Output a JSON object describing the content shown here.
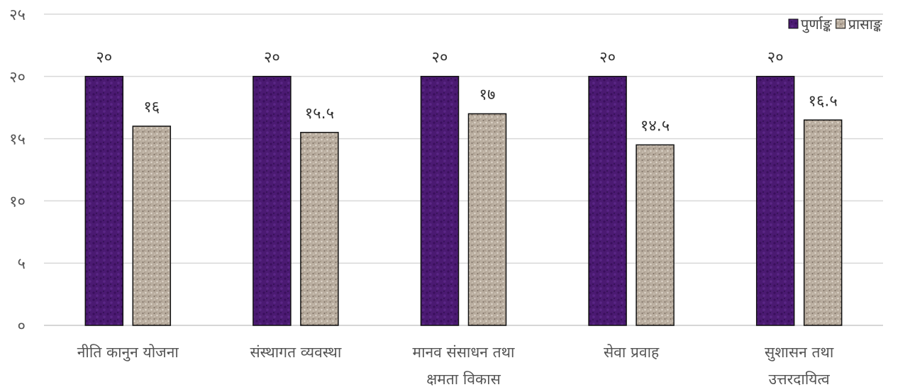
{
  "chart_data": {
    "type": "bar",
    "categories": [
      [
        "नीति कानुन योजना"
      ],
      [
        "संस्थागत व्यवस्था"
      ],
      [
        "मानव संसाधन तथा",
        "क्षमता विकास"
      ],
      [
        "सेवा प्रवाह"
      ],
      [
        "सुशासन तथा",
        "उत्तरदायित्व"
      ]
    ],
    "series": [
      {
        "name": "पुर्णाङ्क",
        "color": "#4b1a72",
        "values": [
          20,
          20,
          20,
          20,
          20
        ],
        "labels": [
          "२०",
          "२०",
          "२०",
          "२०",
          "२०"
        ]
      },
      {
        "name": "प्रासाङ्क",
        "color": "#b9ad9f",
        "values": [
          16,
          15.5,
          17,
          14.5,
          16.5
        ],
        "labels": [
          "१६",
          "१५.५",
          "१७",
          "१४.५",
          "१६.५"
        ]
      }
    ],
    "ylim": [
      0,
      25
    ],
    "yticks": [
      0,
      5,
      10,
      15,
      20,
      25
    ],
    "ytick_labels": [
      "०",
      "५",
      "१०",
      "१५",
      "२०",
      "२५"
    ],
    "grid": true,
    "legend": "top-right",
    "title": "",
    "xlabel": "",
    "ylabel": ""
  }
}
